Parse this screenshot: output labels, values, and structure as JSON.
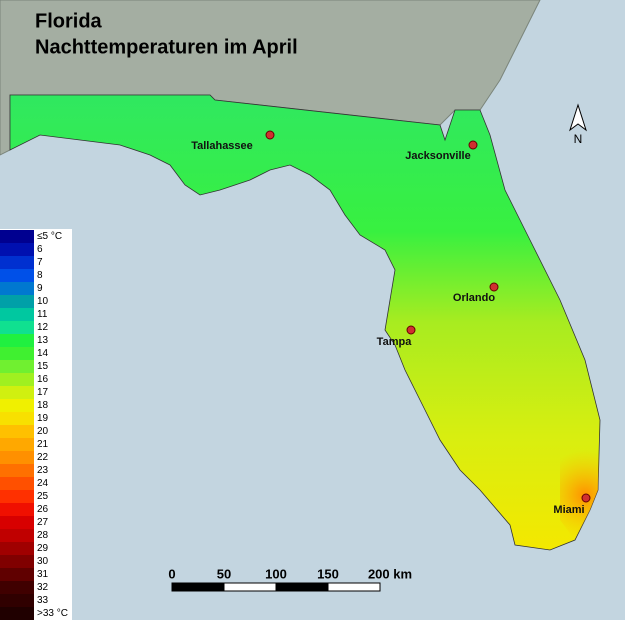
{
  "title": "Florida",
  "subtitle": "Nachttemperaturen im April",
  "north": "N",
  "cities": [
    "Tallahassee",
    "Jacksonville",
    "Orlando",
    "Tampa",
    "Miami"
  ],
  "scale": [
    "0",
    "50",
    "100",
    "150",
    "200 km"
  ],
  "legend": [
    {
      "label": "≤5 °C",
      "color": "#000090"
    },
    {
      "label": "6",
      "color": "#0010b0"
    },
    {
      "label": "7",
      "color": "#0030d0"
    },
    {
      "label": "8",
      "color": "#0050e8"
    },
    {
      "label": "9",
      "color": "#0078d0"
    },
    {
      "label": "10",
      "color": "#00a0a8"
    },
    {
      "label": "11",
      "color": "#00c8a0"
    },
    {
      "label": "12",
      "color": "#10e090"
    },
    {
      "label": "13",
      "color": "#20f040"
    },
    {
      "label": "14",
      "color": "#40f030"
    },
    {
      "label": "15",
      "color": "#70f030"
    },
    {
      "label": "16",
      "color": "#a0f020"
    },
    {
      "label": "17",
      "color": "#d0f010"
    },
    {
      "label": "18",
      "color": "#f0f000"
    },
    {
      "label": "19",
      "color": "#f8e000"
    },
    {
      "label": "20",
      "color": "#ffc000"
    },
    {
      "label": "21",
      "color": "#ffa800"
    },
    {
      "label": "22",
      "color": "#ff9000"
    },
    {
      "label": "23",
      "color": "#ff7000"
    },
    {
      "label": "24",
      "color": "#ff5000"
    },
    {
      "label": "25",
      "color": "#ff3000"
    },
    {
      "label": "26",
      "color": "#f01000"
    },
    {
      "label": "27",
      "color": "#d80000"
    },
    {
      "label": "28",
      "color": "#c00000"
    },
    {
      "label": "29",
      "color": "#a00000"
    },
    {
      "label": "30",
      "color": "#800000"
    },
    {
      "label": "31",
      "color": "#600000"
    },
    {
      "label": "32",
      "color": "#400000"
    },
    {
      "label": "33",
      "color": "#300000"
    },
    {
      "label": ">33 °C",
      "color": "#200000"
    }
  ]
}
